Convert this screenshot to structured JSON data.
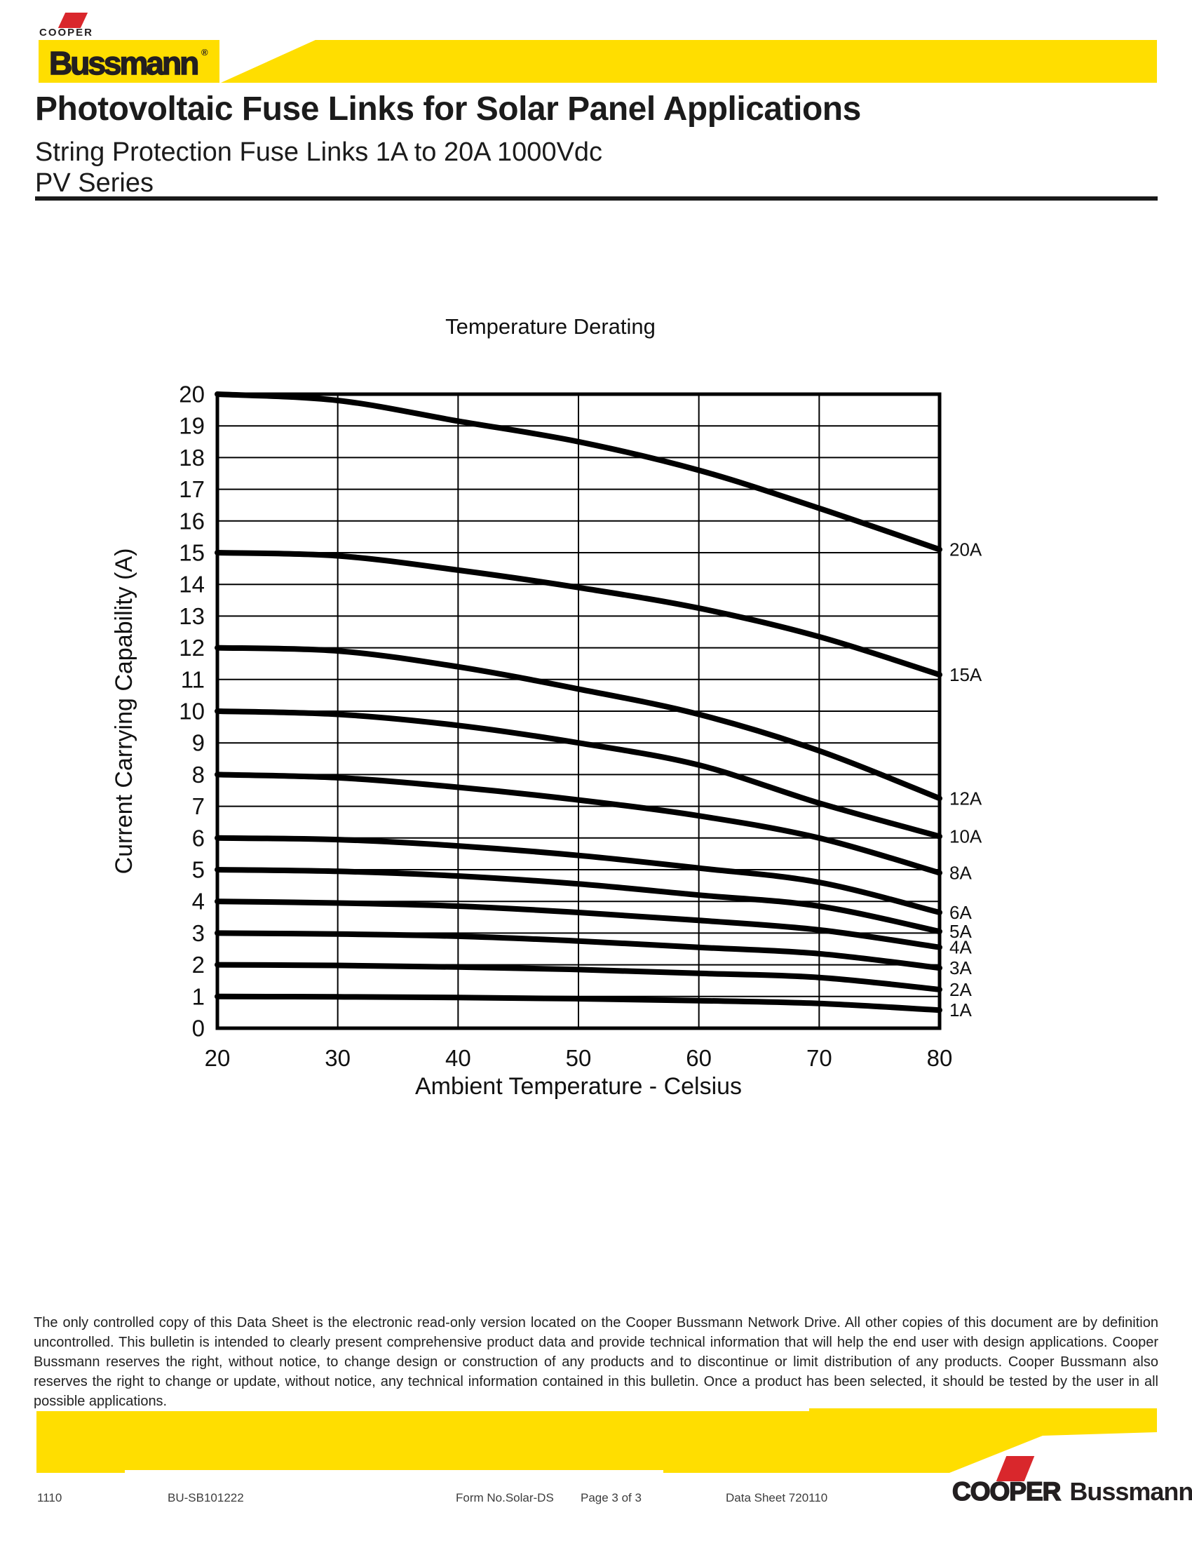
{
  "brand": {
    "cooper_wordmark": "COOPER",
    "bussmann_wordmark": "Bussmann",
    "registered_mark": "®",
    "footer_cooper": "COOPER",
    "footer_bussmann": "Bussmann",
    "yellow": "#FFDE00",
    "red": "#D9272C",
    "ink": "#231F20"
  },
  "header": {
    "title": "Photovoltaic Fuse Links for Solar Panel Applications",
    "subtitle": "String Protection Fuse Links 1A to 20A 1000Vdc",
    "series": "PV Series"
  },
  "chart_data": {
    "type": "line",
    "title": "Temperature Derating",
    "xlabel": "Ambient Temperature - Celsius",
    "ylabel": "Current Carrying Capability (A)",
    "xlim": [
      20,
      80
    ],
    "ylim": [
      0,
      20
    ],
    "x_ticks": [
      20,
      30,
      40,
      50,
      60,
      70,
      80
    ],
    "y_tick_min": 0,
    "y_tick_max": 20,
    "y_tick_step": 1,
    "grid": true,
    "line_color": "#000000",
    "legend_position": "labels-at-line-end-right",
    "x": [
      20,
      30,
      40,
      50,
      60,
      70,
      80
    ],
    "series": [
      {
        "name": "20A",
        "values": [
          20,
          19.8,
          19.15,
          18.5,
          17.6,
          16.4,
          15.1
        ]
      },
      {
        "name": "15A",
        "values": [
          15,
          14.9,
          14.45,
          13.9,
          13.25,
          12.35,
          11.15
        ]
      },
      {
        "name": "12A",
        "values": [
          12,
          11.9,
          11.4,
          10.7,
          9.9,
          8.75,
          7.25
        ]
      },
      {
        "name": "10A",
        "values": [
          10,
          9.9,
          9.55,
          9.0,
          8.3,
          7.1,
          6.05
        ]
      },
      {
        "name": "8A",
        "values": [
          8,
          7.9,
          7.6,
          7.2,
          6.7,
          6.0,
          4.9
        ]
      },
      {
        "name": "6A",
        "values": [
          6,
          5.95,
          5.75,
          5.45,
          5.05,
          4.6,
          3.65
        ]
      },
      {
        "name": "5A",
        "values": [
          5,
          4.95,
          4.8,
          4.55,
          4.2,
          3.85,
          3.05
        ]
      },
      {
        "name": "4A",
        "values": [
          4,
          3.95,
          3.85,
          3.65,
          3.4,
          3.1,
          2.55
        ]
      },
      {
        "name": "3A",
        "values": [
          3,
          2.97,
          2.9,
          2.75,
          2.55,
          2.35,
          1.9
        ]
      },
      {
        "name": "2A",
        "values": [
          2,
          1.98,
          1.93,
          1.85,
          1.73,
          1.6,
          1.22
        ]
      },
      {
        "name": "1A",
        "values": [
          1,
          0.99,
          0.97,
          0.93,
          0.87,
          0.78,
          0.57
        ]
      }
    ]
  },
  "disclaimer": "The only controlled copy of this Data Sheet is the electronic read-only version located on the Cooper Bussmann Network Drive. All other copies of this document are by definition uncontrolled. This bulletin is intended to clearly present comprehensive product data and provide technical information that will help the end user with design applications. Cooper Bussmann reserves the right, without notice, to change design or construction of any products and to discontinue or limit distribution of any products. Cooper Bussmann also reserves the right to change or update, without notice, any technical information contained in this bulletin. Once a product has been selected, it should be tested by the user in all possible applications.",
  "footer": {
    "date_code": "1110",
    "bulletin": "BU-SB101222",
    "form": "Form No.Solar-DS",
    "page": "Page 3 of 3",
    "datasheet": "Data Sheet 720110"
  }
}
